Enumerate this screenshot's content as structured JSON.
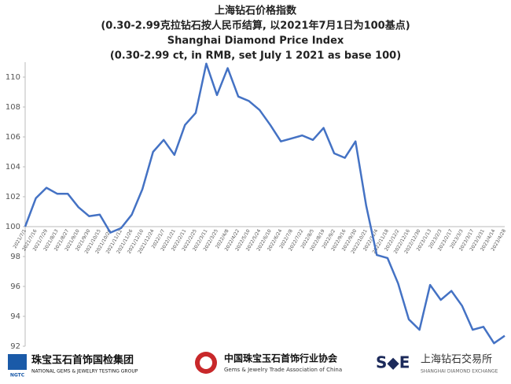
{
  "chart_data": {
    "type": "line",
    "title": "上海钻石价格指数",
    "subtitle": "(0.30-2.99克拉钻石按人民币结算, 以2021年7月1日为100基点)",
    "title_en": "Shanghai Diamond Price Index",
    "subtitle_en": "(0.30-2.99 ct, in RMB, set July 1 2021 as base 100)",
    "categories": [
      "2021/7/1",
      "2021/7/16",
      "2021/7/29",
      "2021/8/13",
      "2021/8/27",
      "2021/9/10",
      "2021/9/30",
      "2021/10/15",
      "2021/10/29",
      "2021/11/12",
      "2021/11/26",
      "2021/12/10",
      "2021/12/24",
      "2022/1/7",
      "2022/1/21",
      "2022/2/11",
      "2022/2/25",
      "2022/3/11",
      "2022/3/25",
      "2022/4/8",
      "2022/4/22",
      "2022/5/10",
      "2022/5/24",
      "2022/6/10",
      "2022/6/24",
      "2022/7/8",
      "2022/7/22",
      "2022/8/5",
      "2022/8/19",
      "2022/9/2",
      "2022/9/16",
      "2022/9/30",
      "2022/10/21",
      "2022/11/4",
      "2022/11/18",
      "2022/12/2",
      "2022/12/16",
      "2022/12/30",
      "2023/1/13",
      "2023/2/3",
      "2023/2/17",
      "2023/3/3",
      "2023/3/17",
      "2023/3/31",
      "2023/4/14",
      "2023/4/28"
    ],
    "values": [
      100,
      101.9,
      102.6,
      102.2,
      102.2,
      101.3,
      100.7,
      100.8,
      99.6,
      99.9,
      100.8,
      102.5,
      105,
      105.8,
      104.8,
      106.8,
      107.6,
      110.9,
      108.8,
      110.6,
      108.7,
      108.4,
      107.8,
      106.8,
      105.7,
      105.9,
      106.1,
      105.8,
      106.6,
      104.9,
      104.6,
      105.7,
      101.4,
      98.1,
      97.9,
      96.2,
      93.8,
      93.1,
      96.1,
      95.1,
      95.7,
      94.7,
      93.1,
      93.3,
      92.2,
      92.7
    ],
    "color": "#4472c4",
    "ylim": [
      92,
      111
    ],
    "yticks": [
      92,
      94,
      96,
      98,
      100,
      102,
      104,
      106,
      108,
      110
    ],
    "x_axis_at": 100
  },
  "logos": {
    "ngtc_mark": "NGTC",
    "ngtc_cn": "珠宝玉石首饰国检集团",
    "ngtc_en": "NATIONAL GEMS & JEWELRY TESTING GROUP",
    "gac_cn": "中国珠宝玉石首饰行业协会",
    "gac_en": "Gems & Jewelry Trade Association of China",
    "sde_mark": "S◆E",
    "sde_cn": "上海钻石交易所",
    "sde_en": "SHANGHAI DIAMOND EXCHANGE"
  }
}
